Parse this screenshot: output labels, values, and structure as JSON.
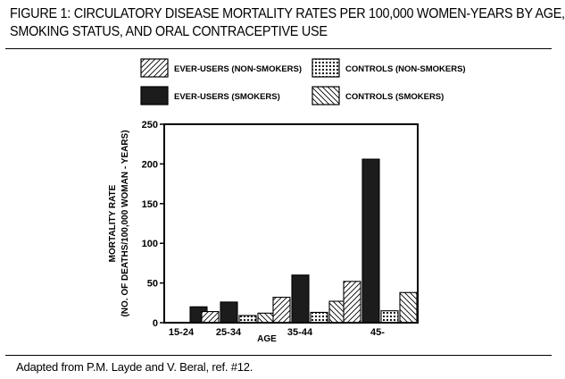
{
  "title": {
    "line1": "FIGURE 1: CIRCULATORY DISEASE MORTALITY RATES PER 100,000 WOMEN-YEARS BY AGE,",
    "line2": "SMOKING STATUS, AND ORAL CONTRACEPTIVE USE"
  },
  "source": "Adapted from P.M. Layde and V. Beral, ref. #12.",
  "chart_data": {
    "type": "bar",
    "xlabel": "AGE",
    "ylabel_line1": "MORTALITY RATE",
    "ylabel_line2": "(NO. OF DEATHS/100,000 WOMAN - YEARS)",
    "ylim": [
      0,
      250
    ],
    "yticks": [
      0,
      50,
      100,
      150,
      200,
      250
    ],
    "grid": false,
    "legend_position": "top",
    "categories": [
      "15-24",
      "25-34",
      "35-44",
      "45-"
    ],
    "series": [
      {
        "name": "EVER-USERS (NON-SMOKERS)",
        "pattern": "diag-right",
        "values": [
          0,
          14,
          32,
          52
        ]
      },
      {
        "name": "EVER-USERS (SMOKERS)",
        "pattern": "solid",
        "values": [
          20,
          26,
          60,
          206
        ]
      },
      {
        "name": "CONTROLS (NON-SMOKERS)",
        "pattern": "dots",
        "values": [
          0,
          9,
          13,
          15
        ]
      },
      {
        "name": "CONTROLS (SMOKERS)",
        "pattern": "diag-left",
        "values": [
          0,
          12,
          27,
          38
        ]
      }
    ],
    "colors": {
      "solid": "#1c1c1c",
      "stroke": "#000000",
      "background": "#ffffff"
    }
  }
}
